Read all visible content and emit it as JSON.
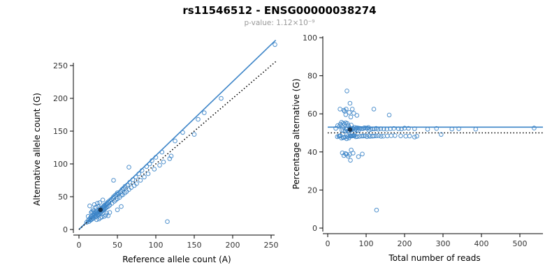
{
  "header": {
    "title": "rs11546512 - ENSG00000038274",
    "subtitle": "p-value: 1.12×10⁻⁹"
  },
  "colors": {
    "accent": "#3d85c8",
    "dotted": "#000000",
    "highlight": "#16324f",
    "axis": "#000000",
    "tick_text": "#333333",
    "subtitle_text": "#999999"
  },
  "chart_data": [
    {
      "type": "scatter",
      "name": "allele-count-scatter",
      "xlabel": "Reference allele count (A)",
      "ylabel": "Alternative allele count (G)",
      "xticks": [
        0,
        50,
        100,
        150,
        200,
        250
      ],
      "yticks": [
        0,
        50,
        100,
        150,
        200,
        250
      ],
      "xlim": [
        0,
        262
      ],
      "ylim": [
        0,
        292
      ],
      "grid": false,
      "point_style": "open-circle",
      "points": [
        [
          10,
          11
        ],
        [
          12,
          14
        ],
        [
          13,
          12
        ],
        [
          14,
          16
        ],
        [
          15,
          14
        ],
        [
          15,
          18
        ],
        [
          16,
          15
        ],
        [
          16,
          20
        ],
        [
          17,
          16
        ],
        [
          18,
          19
        ],
        [
          18,
          22
        ],
        [
          19,
          17
        ],
        [
          20,
          21
        ],
        [
          20,
          24
        ],
        [
          21,
          19
        ],
        [
          21,
          26
        ],
        [
          22,
          23
        ],
        [
          22,
          20
        ],
        [
          23,
          25
        ],
        [
          23,
          28
        ],
        [
          24,
          22
        ],
        [
          24,
          26
        ],
        [
          25,
          24
        ],
        [
          25,
          29
        ],
        [
          26,
          27
        ],
        [
          26,
          23
        ],
        [
          27,
          30
        ],
        [
          27,
          25
        ],
        [
          28,
          29
        ],
        [
          28,
          33
        ],
        [
          29,
          26
        ],
        [
          29,
          31
        ],
        [
          30,
          32
        ],
        [
          30,
          28
        ],
        [
          31,
          34
        ],
        [
          31,
          29
        ],
        [
          32,
          35
        ],
        [
          32,
          30
        ],
        [
          33,
          31
        ],
        [
          33,
          37
        ],
        [
          34,
          36
        ],
        [
          34,
          32
        ],
        [
          35,
          38
        ],
        [
          35,
          33
        ],
        [
          36,
          40
        ],
        [
          36,
          34
        ],
        [
          37,
          39
        ],
        [
          38,
          35
        ],
        [
          38,
          42
        ],
        [
          39,
          41
        ],
        [
          40,
          44
        ],
        [
          40,
          37
        ],
        [
          14,
          36
        ],
        [
          20,
          38
        ],
        [
          26,
          16
        ],
        [
          30,
          19
        ],
        [
          18,
          30
        ],
        [
          24,
          40
        ],
        [
          33,
          20
        ],
        [
          16,
          26
        ],
        [
          22,
          34
        ],
        [
          28,
          18
        ],
        [
          12,
          20
        ],
        [
          35,
          22
        ],
        [
          25,
          35
        ],
        [
          31,
          45
        ],
        [
          40,
          26
        ],
        [
          19,
          28
        ],
        [
          27,
          41
        ],
        [
          36,
          25
        ],
        [
          23,
          15
        ],
        [
          17,
          27
        ],
        [
          38,
          21
        ],
        [
          42,
          46
        ],
        [
          43,
          40
        ],
        [
          44,
          48
        ],
        [
          45,
          50
        ],
        [
          46,
          43
        ],
        [
          47,
          52
        ],
        [
          48,
          45
        ],
        [
          49,
          54
        ],
        [
          50,
          47
        ],
        [
          50,
          56
        ],
        [
          52,
          55
        ],
        [
          53,
          49
        ],
        [
          54,
          58
        ],
        [
          55,
          52
        ],
        [
          56,
          61
        ],
        [
          57,
          53
        ],
        [
          58,
          63
        ],
        [
          60,
          56
        ],
        [
          60,
          66
        ],
        [
          62,
          58
        ],
        [
          63,
          68
        ],
        [
          65,
          61
        ],
        [
          66,
          72
        ],
        [
          68,
          64
        ],
        [
          70,
          76
        ],
        [
          72,
          67
        ],
        [
          74,
          80
        ],
        [
          75,
          70
        ],
        [
          78,
          85
        ],
        [
          80,
          75
        ],
        [
          45,
          75
        ],
        [
          55,
          35
        ],
        [
          65,
          95
        ],
        [
          50,
          30
        ],
        [
          82,
          90
        ],
        [
          85,
          80
        ],
        [
          88,
          96
        ],
        [
          90,
          85
        ],
        [
          92,
          100
        ],
        [
          95,
          105
        ],
        [
          98,
          92
        ],
        [
          100,
          110
        ],
        [
          105,
          98
        ],
        [
          108,
          118
        ],
        [
          110,
          103
        ],
        [
          118,
          108
        ],
        [
          120,
          112
        ],
        [
          125,
          135
        ],
        [
          135,
          148
        ],
        [
          150,
          145
        ],
        [
          155,
          168
        ],
        [
          163,
          178
        ],
        [
          185,
          200
        ],
        [
          255,
          282
        ],
        [
          115,
          12
        ]
      ],
      "highlight_point": [
        28,
        30
      ],
      "lines": [
        {
          "name": "regression-line",
          "style": "solid",
          "color": "#3d85c8",
          "slope": 1.128,
          "intercept": 0
        },
        {
          "name": "identity-line",
          "style": "dotted",
          "color": "#000000",
          "slope": 1.0,
          "intercept": 0
        }
      ]
    },
    {
      "type": "scatter",
      "name": "percentage-alternative-scatter",
      "xlabel": "Total number of reads",
      "ylabel": "Percentage alternative (G)",
      "xticks": [
        0,
        100,
        200,
        300,
        400,
        500
      ],
      "yticks": [
        0,
        20,
        40,
        60,
        80,
        100
      ],
      "xlim": [
        0,
        560
      ],
      "ylim": [
        0,
        100
      ],
      "grid": false,
      "point_style": "open-circle",
      "derived_from": "chart_data.0.points",
      "x_formula": "ref + alt",
      "y_formula": "100 * alt / (ref + alt)",
      "lines": [
        {
          "name": "fit-line",
          "style": "solid",
          "color": "#3d85c8",
          "y": 53
        },
        {
          "name": "reference-line",
          "style": "dotted",
          "color": "#000000",
          "y": 50
        }
      ]
    }
  ]
}
